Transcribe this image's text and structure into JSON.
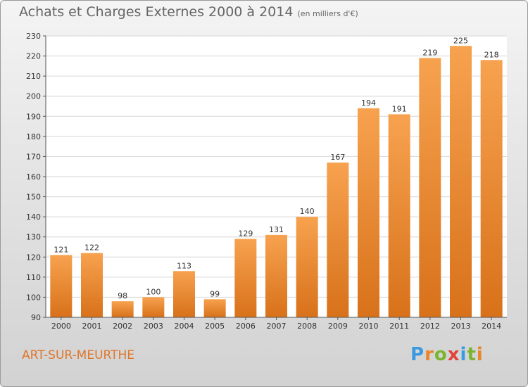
{
  "header": {
    "title": "Achats et Charges Externes 2000 à 2014",
    "unit": "(en milliers d'€)"
  },
  "footer": {
    "commune": "ART-SUR-MEURTHE",
    "logo_text": "Proxiti"
  },
  "colors": {
    "bar_light": "#f7a24f",
    "bar_dark": "#d8711a",
    "commune": "#e0762a"
  },
  "chart_data": {
    "type": "bar",
    "title": "Achats et Charges Externes 2000 à 2014",
    "subtitle": "(en milliers d'€)",
    "xlabel": "",
    "ylabel": "",
    "categories": [
      "2000",
      "2001",
      "2002",
      "2003",
      "2004",
      "2005",
      "2006",
      "2007",
      "2008",
      "2009",
      "2010",
      "2011",
      "2012",
      "2013",
      "2014"
    ],
    "values": [
      121,
      122,
      98,
      100,
      113,
      99,
      129,
      131,
      140,
      167,
      194,
      191,
      219,
      225,
      218
    ],
    "ylim": [
      90,
      230
    ],
    "ytick_step": 10,
    "grid": true,
    "legend": "none"
  }
}
